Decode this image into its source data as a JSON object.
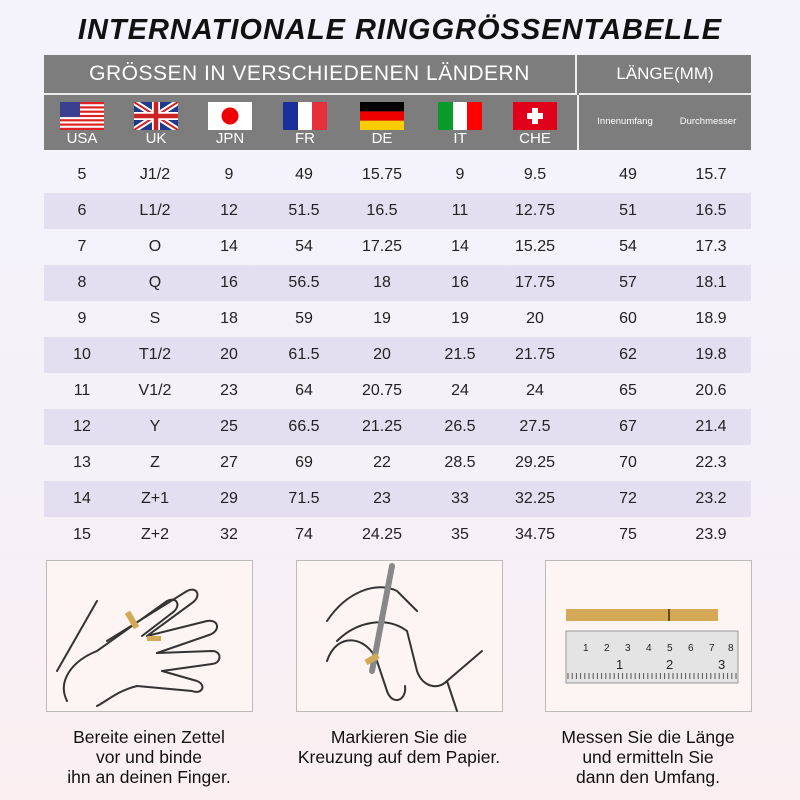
{
  "title": "INTERNATIONALE RINGGRÖSSENTABELLE",
  "header": {
    "countries_label": "GRÖSSEN IN VERSCHIEDENEN LÄNDERN",
    "length_label": "LÄNGE(MM)",
    "countries": [
      {
        "code": "USA",
        "flag": "us-flag"
      },
      {
        "code": "UK",
        "flag": "uk-flag"
      },
      {
        "code": "JPN",
        "flag": "japan-flag"
      },
      {
        "code": "FR",
        "flag": "france-flag"
      },
      {
        "code": "DE",
        "flag": "germany-flag"
      },
      {
        "code": "IT",
        "flag": "italy-flag"
      },
      {
        "code": "CHE",
        "flag": "switzerland-flag"
      }
    ],
    "length_columns": [
      "Innenumfang",
      "Durchmesser"
    ]
  },
  "rows": [
    [
      "5",
      "J1/2",
      "9",
      "49",
      "15.75",
      "9",
      "9.5",
      "49",
      "15.7"
    ],
    [
      "6",
      "L1/2",
      "12",
      "51.5",
      "16.5",
      "11",
      "12.75",
      "51",
      "16.5"
    ],
    [
      "7",
      "O",
      "14",
      "54",
      "17.25",
      "14",
      "15.25",
      "54",
      "17.3"
    ],
    [
      "8",
      "Q",
      "16",
      "56.5",
      "18",
      "16",
      "17.75",
      "57",
      "18.1"
    ],
    [
      "9",
      "S",
      "18",
      "59",
      "19",
      "19",
      "20",
      "60",
      "18.9"
    ],
    [
      "10",
      "T1/2",
      "20",
      "61.5",
      "20",
      "21.5",
      "21.75",
      "62",
      "19.8"
    ],
    [
      "11",
      "V1/2",
      "23",
      "64",
      "20.75",
      "24",
      "24",
      "65",
      "20.6"
    ],
    [
      "12",
      "Y",
      "25",
      "66.5",
      "21.25",
      "26.5",
      "27.5",
      "67",
      "21.4"
    ],
    [
      "13",
      "Z",
      "27",
      "69",
      "22",
      "28.5",
      "29.25",
      "70",
      "22.3"
    ],
    [
      "14",
      "Z+1",
      "29",
      "71.5",
      "23",
      "33",
      "32.25",
      "72",
      "23.2"
    ],
    [
      "15",
      "Z+2",
      "32",
      "74",
      "24.25",
      "35",
      "34.75",
      "75",
      "23.9"
    ]
  ],
  "steps": [
    {
      "image": "paper-strip-around-finger",
      "caption": [
        "Bereite einen Zettel",
        "vor und binde",
        "ihn an deinen Finger."
      ]
    },
    {
      "image": "mark-crossing-with-pen",
      "caption": [
        "Markieren Sie die",
        "Kreuzung auf dem Papier."
      ]
    },
    {
      "image": "measure-strip-with-ruler",
      "caption": [
        "Messen Sie die Länge",
        "und ermitteln Sie",
        "dann den Umfang."
      ]
    }
  ],
  "colors": {
    "header_bg": "#7d7d7d",
    "alt_row": "#e4dff0",
    "strip": "#d4a955"
  }
}
